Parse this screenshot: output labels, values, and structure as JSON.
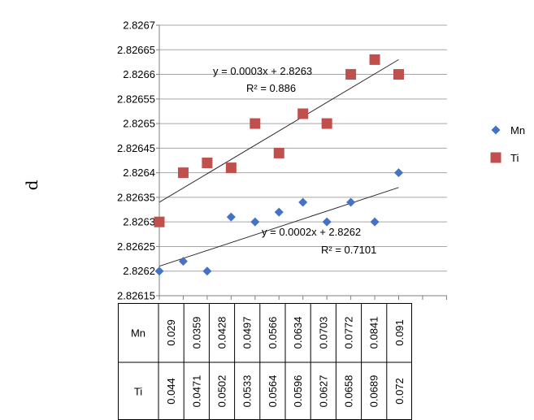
{
  "chart_data": {
    "type": "scatter",
    "ylabel": "d",
    "ylim": [
      2.82615,
      2.8267
    ],
    "ytick_values": [
      2.82615,
      2.8262,
      2.82625,
      2.8263,
      2.82635,
      2.8264,
      2.82645,
      2.8265,
      2.82655,
      2.8266,
      2.82665,
      2.8267
    ],
    "ytick_labels": [
      "2.82615",
      "2.8262",
      "2.82625",
      "2.8263",
      "2.82635",
      "2.8264",
      "2.82645",
      "2.8265",
      "2.82655",
      "2.8266",
      "2.82665",
      "2.8267"
    ],
    "grid": true,
    "legend_position": "right",
    "x_index": [
      1,
      2,
      3,
      4,
      5,
      6,
      7,
      8,
      9,
      10,
      11
    ],
    "series": [
      {
        "name": "Mn",
        "color": "#4472C4",
        "marker": "diamond",
        "values": [
          2.8262,
          2.82622,
          2.8262,
          2.82631,
          2.8263,
          2.82632,
          2.82634,
          2.8263,
          2.82634,
          2.8263,
          2.8264
        ],
        "trendline": {
          "equation": "y = 0.0002x + 2.8262",
          "r2": "R² = 0.7101",
          "start": 2.82621,
          "end": 2.82637
        }
      },
      {
        "name": "Ti",
        "color": "#C0504D",
        "marker": "square",
        "values": [
          2.8263,
          2.8264,
          2.82642,
          2.82641,
          2.8265,
          2.82644,
          2.82652,
          2.8265,
          2.8266,
          2.82663,
          2.8266
        ],
        "trendline": {
          "equation": "y = 0.0003x + 2.8263",
          "r2": "R² = 0.886",
          "start": 2.82634,
          "end": 2.82663
        }
      }
    ],
    "table": {
      "rows": [
        {
          "label": "Mn",
          "values": [
            "0.029",
            "0.0359",
            "0.0428",
            "0.0497",
            "0.0566",
            "0.0634",
            "0.0703",
            "0.0772",
            "0.0841",
            "0.091"
          ]
        },
        {
          "label": "Ti",
          "values": [
            "0.044",
            "0.0471",
            "0.0502",
            "0.0533",
            "0.0564",
            "0.0596",
            "0.0627",
            "0.0658",
            "0.0689",
            "0.072"
          ]
        }
      ]
    }
  }
}
